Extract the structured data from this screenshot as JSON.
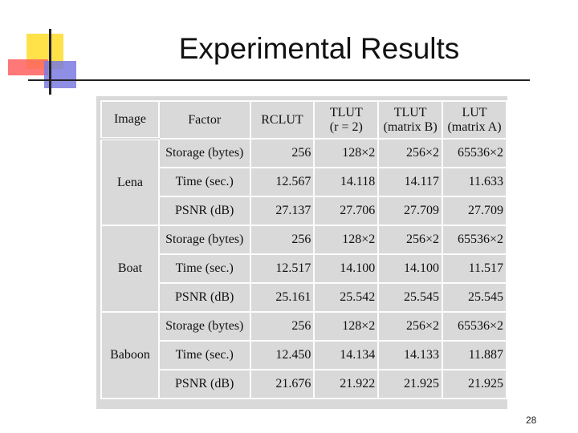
{
  "title": "Experimental Results",
  "table": {
    "header": [
      [
        "Image"
      ],
      [
        "Factor"
      ],
      [
        "RCLUT"
      ],
      [
        "TLUT",
        "(r = 2)"
      ],
      [
        "TLUT",
        "(matrix B)"
      ],
      [
        "LUT",
        "(matrix A)"
      ]
    ],
    "groups": [
      {
        "image": "Lena",
        "rows": [
          [
            "Storage (bytes)",
            "256",
            "128×2",
            "256×2",
            "65536×2"
          ],
          [
            "Time (sec.)",
            "12.567",
            "14.118",
            "14.117",
            "11.633"
          ],
          [
            "PSNR (dB)",
            "27.137",
            "27.706",
            "27.709",
            "27.709"
          ]
        ]
      },
      {
        "image": "Boat",
        "rows": [
          [
            "Storage (bytes)",
            "256",
            "128×2",
            "256×2",
            "65536×2"
          ],
          [
            "Time (sec.)",
            "12.517",
            "14.100",
            "14.100",
            "11.517"
          ],
          [
            "PSNR (dB)",
            "25.161",
            "25.542",
            "25.545",
            "25.545"
          ]
        ]
      },
      {
        "image": "Baboon",
        "rows": [
          [
            "Storage (bytes)",
            "256",
            "128×2",
            "256×2",
            "65536×2"
          ],
          [
            "Time (sec.)",
            "12.450",
            "14.134",
            "14.133",
            "11.887"
          ],
          [
            "PSNR (dB)",
            "21.676",
            "21.922",
            "21.925",
            "21.925"
          ]
        ]
      }
    ]
  },
  "page_number": "28"
}
